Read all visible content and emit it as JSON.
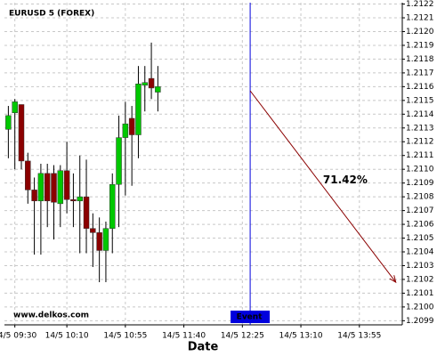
{
  "chart_data": {
    "type": "candlestick",
    "title": "EURUSD 5 (FOREX)",
    "x_label": "Date",
    "watermark": "www.delkos.com",
    "x": [
      "14/5 09:25",
      "14/5 09:30",
      "14/5 09:35",
      "14/5 09:40",
      "14/5 09:45",
      "14/5 09:50",
      "14/5 09:55",
      "14/5 10:00",
      "14/5 10:05",
      "14/5 10:10",
      "14/5 10:15",
      "14/5 10:20",
      "14/5 10:25",
      "14/5 10:30",
      "14/5 10:35",
      "14/5 10:40",
      "14/5 10:45",
      "14/5 10:50",
      "14/5 10:55",
      "14/5 11:00",
      "14/5 11:05",
      "14/5 11:10",
      "14/5 11:15",
      "14/5 11:20"
    ],
    "open": [
      1.21129,
      1.21141,
      1.21147,
      1.21106,
      1.21085,
      1.21077,
      1.21097,
      1.21097,
      1.21075,
      1.21099,
      1.21078,
      1.21077,
      1.2108,
      1.21057,
      1.21054,
      1.21041,
      1.21057,
      1.21089,
      1.21123,
      1.21137,
      1.21125,
      1.21161,
      1.21166,
      1.21156
    ],
    "high": [
      1.21146,
      1.21151,
      1.21147,
      1.21112,
      1.21094,
      1.21104,
      1.21104,
      1.21103,
      1.21103,
      1.2112,
      1.21097,
      1.2111,
      1.21107,
      1.21068,
      1.21065,
      1.21062,
      1.21097,
      1.21139,
      1.21149,
      1.21146,
      1.21175,
      1.21175,
      1.21192,
      1.21175
    ],
    "low": [
      1.21108,
      1.211,
      1.211,
      1.21075,
      1.21038,
      1.21038,
      1.21058,
      1.21049,
      1.21058,
      1.21068,
      1.21058,
      1.21039,
      1.21039,
      1.21029,
      1.21018,
      1.21018,
      1.21039,
      1.21058,
      1.21081,
      1.21088,
      1.21108,
      1.21142,
      1.21151,
      1.21142
    ],
    "close": [
      1.21139,
      1.21149,
      1.21106,
      1.21085,
      1.21077,
      1.21097,
      1.21077,
      1.21076,
      1.21099,
      1.21078,
      1.21077,
      1.2108,
      1.21057,
      1.21054,
      1.21041,
      1.21057,
      1.21089,
      1.21123,
      1.21133,
      1.21125,
      1.21162,
      1.21163,
      1.21159,
      1.2116
    ],
    "up_color": "#00c800",
    "down_color": "#8b0000",
    "xlim": [
      "14/5 09:22",
      "14/5 14:28"
    ],
    "xticks": [
      "14/5 09:30",
      "14/5 10:10",
      "14/5 10:55",
      "14/5 11:40",
      "14/5 12:25",
      "14/5 13:10",
      "14/5 13:55"
    ],
    "ylim": [
      1.20987,
      1.21221
    ],
    "yticks": [
      1.2099,
      {
        "value": 1.21,
        "label": "1.2100"
      },
      1.2101,
      1.2102,
      1.2103,
      1.2104,
      1.2105,
      1.2106,
      1.2107,
      1.2108,
      1.2109,
      {
        "value": 1.211,
        "label": "1.2110"
      },
      1.2111,
      1.2112,
      1.2113,
      1.2114,
      1.2115,
      1.2116,
      1.2117,
      1.2118,
      1.2119,
      {
        "value": 1.212,
        "label": "1.2120"
      },
      1.2121,
      1.2122
    ],
    "grid": true,
    "event": {
      "label": "Event",
      "x": "14/5 12:31",
      "color": "#0000dd"
    },
    "projection": {
      "label": "71.42%",
      "x": [
        "14/5 12:31",
        "14/5 14:23"
      ],
      "y": [
        1.21157,
        1.21018
      ],
      "color": "#8b0000"
    }
  }
}
